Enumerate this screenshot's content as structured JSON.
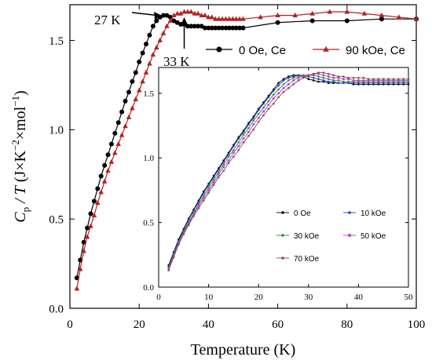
{
  "chart_data": [
    {
      "type": "line",
      "xlabel": "Temperature (K)",
      "ylabel": "C",
      "ylabel_sub": "p",
      "ylabel_rest": " / T (J×K",
      "ylabel_sup1": "−2",
      "ylabel_mid": "×mol",
      "ylabel_sup2": "−1",
      "ylabel_end": ")",
      "xlim": [
        0,
        100
      ],
      "ylim": [
        0,
        1.7
      ],
      "xticks": [
        0,
        20,
        40,
        60,
        80,
        100
      ],
      "yticks": [
        0.0,
        0.5,
        1.0,
        1.5
      ],
      "grid": false,
      "legend_position": "top-right",
      "annotations": [
        {
          "text": "27 K",
          "x": 27,
          "y": 1.64
        },
        {
          "text": "33 K",
          "x": 33,
          "y": 1.66
        }
      ],
      "series": [
        {
          "name": "0 Oe, Ce",
          "color": "#000000",
          "marker": "circle",
          "x": [
            2,
            3,
            4,
            5,
            6,
            7,
            8,
            9,
            10,
            11,
            12,
            13,
            14,
            15,
            16,
            17,
            18,
            19,
            20,
            21,
            22,
            23,
            24,
            25,
            26,
            27,
            28,
            29,
            30,
            31,
            32,
            33,
            34,
            35,
            36,
            37,
            38,
            39,
            40,
            41,
            42,
            43,
            44,
            45,
            46,
            47,
            48,
            49,
            50,
            60,
            70,
            80,
            90,
            100
          ],
          "y": [
            0.17,
            0.27,
            0.37,
            0.45,
            0.53,
            0.6,
            0.67,
            0.74,
            0.8,
            0.86,
            0.92,
            0.98,
            1.04,
            1.1,
            1.16,
            1.21,
            1.27,
            1.32,
            1.38,
            1.43,
            1.48,
            1.53,
            1.58,
            1.61,
            1.63,
            1.64,
            1.64,
            1.63,
            1.61,
            1.6,
            1.59,
            1.59,
            1.58,
            1.58,
            1.58,
            1.58,
            1.58,
            1.57,
            1.57,
            1.57,
            1.57,
            1.57,
            1.57,
            1.57,
            1.57,
            1.57,
            1.57,
            1.57,
            1.57,
            1.6,
            1.61,
            1.61,
            1.62,
            1.62
          ]
        },
        {
          "name": "90 kOe, Ce",
          "color": "#b22222",
          "marker": "triangle",
          "x": [
            2,
            3,
            4,
            5,
            6,
            7,
            8,
            9,
            10,
            11,
            12,
            13,
            14,
            15,
            16,
            17,
            18,
            19,
            20,
            21,
            22,
            23,
            24,
            25,
            26,
            27,
            28,
            29,
            30,
            31,
            32,
            33,
            34,
            35,
            36,
            37,
            38,
            39,
            40,
            41,
            42,
            43,
            44,
            45,
            46,
            47,
            48,
            49,
            50,
            55,
            60,
            65,
            70,
            75,
            80,
            85,
            90,
            95,
            100
          ],
          "y": [
            0.11,
            0.22,
            0.32,
            0.4,
            0.46,
            0.52,
            0.59,
            0.65,
            0.71,
            0.77,
            0.82,
            0.87,
            0.92,
            0.97,
            1.02,
            1.07,
            1.12,
            1.17,
            1.22,
            1.27,
            1.32,
            1.37,
            1.42,
            1.46,
            1.5,
            1.54,
            1.58,
            1.61,
            1.64,
            1.65,
            1.65,
            1.66,
            1.66,
            1.66,
            1.65,
            1.65,
            1.64,
            1.64,
            1.63,
            1.63,
            1.62,
            1.62,
            1.62,
            1.62,
            1.62,
            1.62,
            1.62,
            1.62,
            1.62,
            1.63,
            1.64,
            1.64,
            1.65,
            1.66,
            1.66,
            1.65,
            1.64,
            1.63,
            1.62
          ]
        }
      ]
    },
    {
      "type": "line",
      "xlabel": "",
      "ylabel": "",
      "xlim": [
        0,
        50
      ],
      "ylim": [
        0,
        1.7
      ],
      "xticks": [
        0,
        10,
        20,
        30,
        40,
        50
      ],
      "yticks": [
        0.0,
        0.5,
        1.0,
        1.5
      ],
      "grid": false,
      "legend_position": "bottom-center",
      "series": [
        {
          "name": "0 Oe",
          "color": "#000000",
          "marker": "dot",
          "x": [
            2,
            3,
            4,
            5,
            6,
            7,
            8,
            9,
            10,
            11,
            12,
            13,
            14,
            15,
            16,
            17,
            18,
            19,
            20,
            21,
            22,
            23,
            24,
            25,
            26,
            27,
            28,
            29,
            30,
            31,
            32,
            33,
            34,
            35,
            36,
            37,
            38,
            39,
            40,
            41,
            42,
            43,
            44,
            45,
            46,
            47,
            48,
            49,
            50
          ],
          "y": [
            0.17,
            0.27,
            0.37,
            0.45,
            0.53,
            0.6,
            0.67,
            0.74,
            0.8,
            0.86,
            0.92,
            0.98,
            1.04,
            1.1,
            1.16,
            1.21,
            1.27,
            1.32,
            1.38,
            1.43,
            1.48,
            1.53,
            1.58,
            1.61,
            1.63,
            1.64,
            1.64,
            1.63,
            1.61,
            1.6,
            1.59,
            1.59,
            1.58,
            1.58,
            1.58,
            1.58,
            1.58,
            1.57,
            1.57,
            1.57,
            1.57,
            1.57,
            1.57,
            1.57,
            1.57,
            1.57,
            1.57,
            1.57,
            1.57
          ]
        },
        {
          "name": "10 kOe",
          "color": "#1f3fbf",
          "marker": "dot",
          "x": [
            2,
            3,
            4,
            5,
            6,
            7,
            8,
            9,
            10,
            11,
            12,
            13,
            14,
            15,
            16,
            17,
            18,
            19,
            20,
            21,
            22,
            23,
            24,
            25,
            26,
            27,
            28,
            29,
            30,
            31,
            32,
            33,
            34,
            35,
            36,
            37,
            38,
            39,
            40,
            41,
            42,
            43,
            44,
            45,
            46,
            47,
            48,
            49,
            50
          ],
          "y": [
            0.16,
            0.26,
            0.36,
            0.44,
            0.52,
            0.59,
            0.66,
            0.73,
            0.79,
            0.85,
            0.91,
            0.97,
            1.03,
            1.09,
            1.15,
            1.2,
            1.26,
            1.31,
            1.37,
            1.42,
            1.47,
            1.52,
            1.56,
            1.6,
            1.62,
            1.63,
            1.64,
            1.64,
            1.63,
            1.62,
            1.61,
            1.6,
            1.59,
            1.59,
            1.58,
            1.58,
            1.58,
            1.58,
            1.58,
            1.58,
            1.58,
            1.58,
            1.58,
            1.58,
            1.58,
            1.58,
            1.58,
            1.58,
            1.58
          ]
        },
        {
          "name": "30 kOe",
          "color": "#2e8b3a",
          "marker": "dot",
          "x": [
            2,
            3,
            4,
            5,
            6,
            7,
            8,
            9,
            10,
            11,
            12,
            13,
            14,
            15,
            16,
            17,
            18,
            19,
            20,
            21,
            22,
            23,
            24,
            25,
            26,
            27,
            28,
            29,
            30,
            31,
            32,
            33,
            34,
            35,
            36,
            37,
            38,
            39,
            40,
            41,
            42,
            43,
            44,
            45,
            46,
            47,
            48,
            49,
            50
          ],
          "y": [
            0.15,
            0.25,
            0.35,
            0.43,
            0.5,
            0.57,
            0.64,
            0.71,
            0.77,
            0.83,
            0.89,
            0.95,
            1.01,
            1.06,
            1.12,
            1.18,
            1.23,
            1.29,
            1.34,
            1.39,
            1.44,
            1.49,
            1.53,
            1.57,
            1.6,
            1.62,
            1.63,
            1.64,
            1.64,
            1.64,
            1.63,
            1.62,
            1.61,
            1.6,
            1.6,
            1.59,
            1.59,
            1.59,
            1.59,
            1.59,
            1.59,
            1.59,
            1.59,
            1.59,
            1.59,
            1.59,
            1.59,
            1.59,
            1.59
          ]
        },
        {
          "name": "50 kOe",
          "color": "#c03ad0",
          "marker": "square",
          "x": [
            2,
            3,
            4,
            5,
            6,
            7,
            8,
            9,
            10,
            11,
            12,
            13,
            14,
            15,
            16,
            17,
            18,
            19,
            20,
            21,
            22,
            23,
            24,
            25,
            26,
            27,
            28,
            29,
            30,
            31,
            32,
            33,
            34,
            35,
            36,
            37,
            38,
            39,
            40,
            41,
            42,
            43,
            44,
            45,
            46,
            47,
            48,
            49,
            50
          ],
          "y": [
            0.14,
            0.24,
            0.34,
            0.42,
            0.49,
            0.56,
            0.63,
            0.69,
            0.75,
            0.81,
            0.87,
            0.93,
            0.98,
            1.04,
            1.09,
            1.15,
            1.2,
            1.26,
            1.31,
            1.36,
            1.41,
            1.46,
            1.5,
            1.54,
            1.57,
            1.6,
            1.62,
            1.63,
            1.64,
            1.65,
            1.65,
            1.64,
            1.63,
            1.62,
            1.62,
            1.61,
            1.61,
            1.6,
            1.6,
            1.6,
            1.6,
            1.6,
            1.6,
            1.6,
            1.6,
            1.6,
            1.6,
            1.6,
            1.6
          ]
        },
        {
          "name": "70 kOe",
          "color": "#8b4a4a",
          "marker": "dot",
          "x": [
            2,
            3,
            4,
            5,
            6,
            7,
            8,
            9,
            10,
            11,
            12,
            13,
            14,
            15,
            16,
            17,
            18,
            19,
            20,
            21,
            22,
            23,
            24,
            25,
            26,
            27,
            28,
            29,
            30,
            31,
            32,
            33,
            34,
            35,
            36,
            37,
            38,
            39,
            40,
            41,
            42,
            43,
            44,
            45,
            46,
            47,
            48,
            49,
            50
          ],
          "y": [
            0.13,
            0.23,
            0.33,
            0.41,
            0.48,
            0.55,
            0.61,
            0.67,
            0.73,
            0.79,
            0.85,
            0.9,
            0.96,
            1.01,
            1.06,
            1.12,
            1.17,
            1.22,
            1.28,
            1.33,
            1.38,
            1.42,
            1.47,
            1.51,
            1.54,
            1.57,
            1.6,
            1.62,
            1.64,
            1.65,
            1.66,
            1.66,
            1.65,
            1.64,
            1.63,
            1.63,
            1.62,
            1.62,
            1.62,
            1.62,
            1.61,
            1.61,
            1.61,
            1.61,
            1.61,
            1.61,
            1.61,
            1.61,
            1.61
          ]
        }
      ]
    }
  ]
}
